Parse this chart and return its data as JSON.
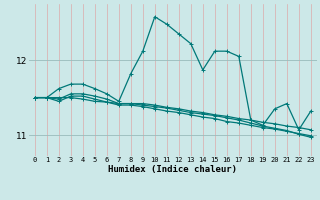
{
  "xlabel": "Humidex (Indice chaleur)",
  "bg_color": "#cce8e8",
  "line_color": "#007878",
  "xlim": [
    -0.5,
    23.5
  ],
  "ylim": [
    10.72,
    12.75
  ],
  "yticks": [
    11,
    12
  ],
  "ytick_labels": [
    "11",
    "12"
  ],
  "xticks": [
    0,
    1,
    2,
    3,
    4,
    5,
    6,
    7,
    8,
    9,
    10,
    11,
    12,
    13,
    14,
    15,
    16,
    17,
    18,
    19,
    20,
    21,
    22,
    23
  ],
  "lines": [
    [
      11.5,
      11.5,
      11.62,
      11.68,
      11.68,
      11.62,
      11.55,
      11.45,
      11.82,
      12.12,
      12.58,
      12.48,
      12.35,
      12.22,
      11.87,
      12.12,
      12.12,
      12.05,
      11.2,
      11.13,
      11.35,
      11.42,
      11.07,
      11.32
    ],
    [
      11.5,
      11.5,
      11.48,
      11.55,
      11.55,
      11.52,
      11.48,
      11.42,
      11.42,
      11.42,
      11.4,
      11.37,
      11.35,
      11.32,
      11.3,
      11.27,
      11.25,
      11.22,
      11.2,
      11.17,
      11.15,
      11.12,
      11.1,
      11.07
    ],
    [
      11.5,
      11.5,
      11.45,
      11.52,
      11.52,
      11.48,
      11.44,
      11.4,
      11.4,
      11.38,
      11.35,
      11.32,
      11.3,
      11.27,
      11.24,
      11.22,
      11.18,
      11.16,
      11.13,
      11.1,
      11.08,
      11.05,
      11.02,
      10.99
    ],
    [
      11.5,
      11.5,
      11.5,
      11.5,
      11.48,
      11.45,
      11.44,
      11.42,
      11.42,
      11.4,
      11.38,
      11.36,
      11.33,
      11.3,
      11.28,
      11.26,
      11.23,
      11.2,
      11.16,
      11.12,
      11.09,
      11.06,
      11.01,
      10.97
    ]
  ],
  "hgrid_color": "#99bbbb",
  "vgrid_color": "#ddaaaa",
  "marker": "+",
  "markersize": 3,
  "linewidth": 0.9,
  "xlabel_fontsize": 6.5,
  "xtick_fontsize": 5.0,
  "ytick_fontsize": 6.5
}
